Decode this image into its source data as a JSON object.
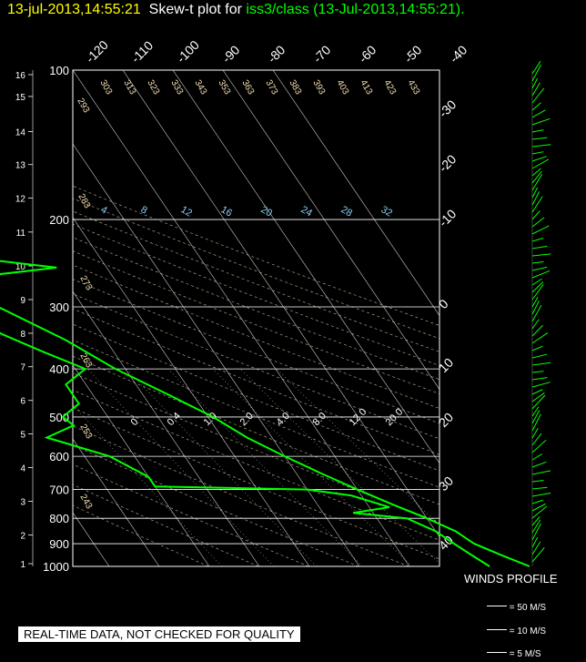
{
  "header": {
    "timestamp": "13-jul-2013,14:55:21",
    "mid": "Skew-t plot for",
    "station": "iss3/class (13-Jul-2013,14:55:21)."
  },
  "footer": {
    "quality_note": "REAL-TIME DATA, NOT CHECKED FOR QUALITY"
  },
  "winds": {
    "title": "WINDS PROFILE",
    "legend": [
      "= 50 M/S",
      "= 10 M/S",
      "= 5 M/S"
    ]
  },
  "colors": {
    "trace": "#00ff00",
    "grid": "#ffffff",
    "mixing_ratio": "#87cefa",
    "adiabat": "#f5deb3",
    "title_time": "#ffff00"
  },
  "chart_data": {
    "type": "line",
    "title": "Skew-t plot for iss3/class (13-Jul-2013,14:55:21).",
    "pressure_ticks": [
      "100",
      "200",
      "300",
      "400",
      "500",
      "600",
      "700",
      "800",
      "900",
      "1000"
    ],
    "height_ticks": [
      "16",
      "15",
      "14",
      "13",
      "12",
      "11",
      "10",
      "9",
      "8",
      "7",
      "6",
      "5",
      "4",
      "3",
      "2",
      "1"
    ],
    "top_temperature_ticks": [
      "-120",
      "-110",
      "-100",
      "-90",
      "-80",
      "-70",
      "-60",
      "-50",
      "-40"
    ],
    "right_temperature_ticks": [
      "-30",
      "-20",
      "-10",
      "0",
      "10",
      "20",
      "30",
      "40"
    ],
    "theta_labels": [
      "303",
      "313",
      "323",
      "333",
      "343",
      "353",
      "363",
      "373",
      "383",
      "393",
      "403",
      "413",
      "423",
      "433",
      "293",
      "283",
      "273",
      "263",
      "253",
      "243"
    ],
    "mixing_ratio_labels": [
      "4",
      "8",
      "12",
      "16",
      "20",
      "24",
      "28",
      "32"
    ],
    "lower_labels": [
      "0",
      "0.4",
      "1.0",
      "2.0",
      "4.0",
      "8.0",
      "12.0",
      "20.0"
    ],
    "ylim": [
      1000,
      100
    ],
    "series": [
      {
        "role": "temperature",
        "p": [
          1000,
          950,
          900,
          850,
          800,
          750,
          700,
          650,
          600,
          550,
          500,
          450,
          400,
          350,
          300,
          250,
          200,
          175,
          150,
          125,
          100
        ],
        "t": [
          34,
          30,
          26,
          24,
          20,
          15,
          10,
          5,
          0,
          -5,
          -9,
          -15,
          -22,
          -28,
          -37,
          -42,
          -52,
          -56,
          -58,
          -64,
          -70
        ]
      },
      {
        "role": "dewpoint",
        "p": [
          1000,
          950,
          900,
          850,
          800,
          780,
          760,
          720,
          700,
          690,
          660,
          600,
          550,
          520,
          500,
          470,
          430,
          400,
          370,
          340,
          310,
          290,
          270,
          250,
          240,
          230,
          220,
          200,
          180,
          150,
          130,
          115,
          100
        ],
        "t": [
          26,
          24,
          22,
          20,
          16,
          6,
          14,
          8,
          0,
          -30,
          -30,
          -35,
          -45,
          -38,
          -39,
          -34,
          -34,
          -28,
          -34,
          -40,
          -44,
          -52,
          -51,
          -20,
          -34,
          -62,
          -70,
          -78,
          -80,
          -88,
          -88,
          -92,
          -88
        ]
      }
    ]
  }
}
